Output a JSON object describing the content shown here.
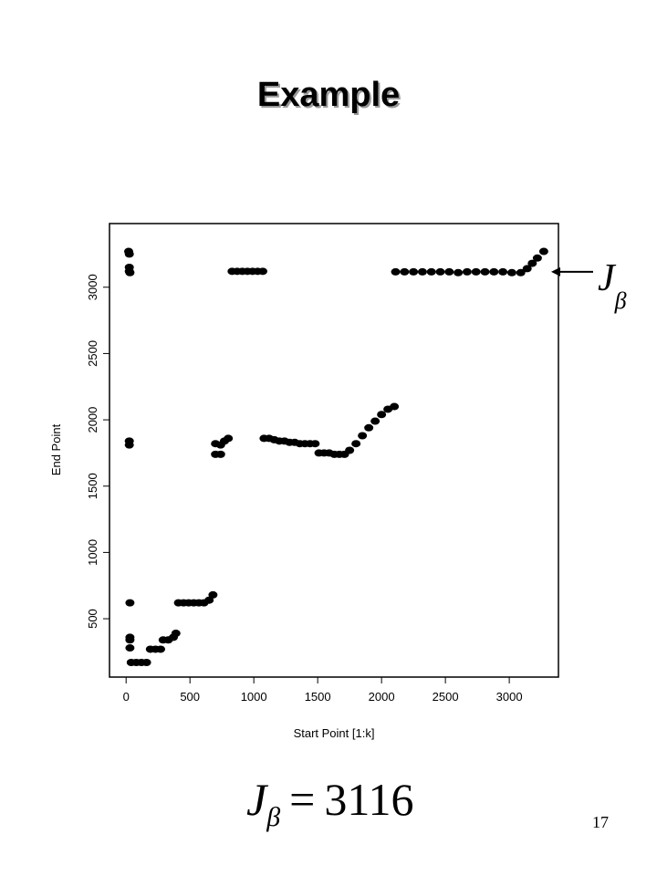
{
  "chart_data": {
    "type": "scatter",
    "title": "Example",
    "x_label": "Start Point [1:k]",
    "y_label": "End Point",
    "color": "#000000",
    "x": [
      20,
      25,
      25,
      25,
      30,
      25,
      25,
      30,
      30,
      30,
      30,
      40,
      80,
      120,
      160,
      190,
      230,
      270,
      290,
      330,
      370,
      390,
      410,
      450,
      490,
      530,
      570,
      610,
      650,
      680,
      700,
      740,
      700,
      740,
      770,
      800,
      830,
      870,
      910,
      950,
      990,
      1030,
      1070,
      1080,
      1120,
      1160,
      1200,
      1240,
      1280,
      1320,
      1360,
      1400,
      1440,
      1480,
      1510,
      1550,
      1590,
      1630,
      1670,
      1710,
      1750,
      1800,
      1850,
      1900,
      1950,
      2000,
      2050,
      2100,
      2110,
      2180,
      2250,
      2320,
      2390,
      2460,
      2530,
      2600,
      2670,
      2740,
      2810,
      2880,
      2950,
      3020,
      3090,
      3140,
      3180,
      3220,
      3270
    ],
    "y": [
      3270,
      3250,
      3150,
      3120,
      3110,
      1840,
      1810,
      620,
      360,
      340,
      280,
      170,
      170,
      170,
      170,
      270,
      270,
      270,
      340,
      340,
      360,
      390,
      620,
      620,
      620,
      620,
      620,
      620,
      640,
      680,
      1740,
      1740,
      1820,
      1810,
      1840,
      1860,
      3120,
      3120,
      3120,
      3120,
      3120,
      3120,
      3120,
      1860,
      1860,
      1850,
      1840,
      1840,
      1830,
      1830,
      1820,
      1820,
      1820,
      1820,
      1750,
      1750,
      1750,
      1740,
      1740,
      1740,
      1770,
      1820,
      1880,
      1940,
      1990,
      2040,
      2080,
      2100,
      3116,
      3116,
      3116,
      3116,
      3116,
      3116,
      3116,
      3110,
      3116,
      3116,
      3116,
      3116,
      3116,
      3110,
      3110,
      3140,
      3180,
      3220,
      3270
    ],
    "xlim": [
      -130,
      3385
    ],
    "ylim": [
      60,
      3480
    ],
    "xticks": [
      0,
      500,
      1000,
      1500,
      2000,
      2500,
      3000
    ],
    "yticks": [
      500,
      1000,
      1500,
      2000,
      2500,
      3000
    ],
    "annotation": {
      "symbol": "J",
      "subscript": "β",
      "value": 3116
    },
    "page_number": "17"
  }
}
